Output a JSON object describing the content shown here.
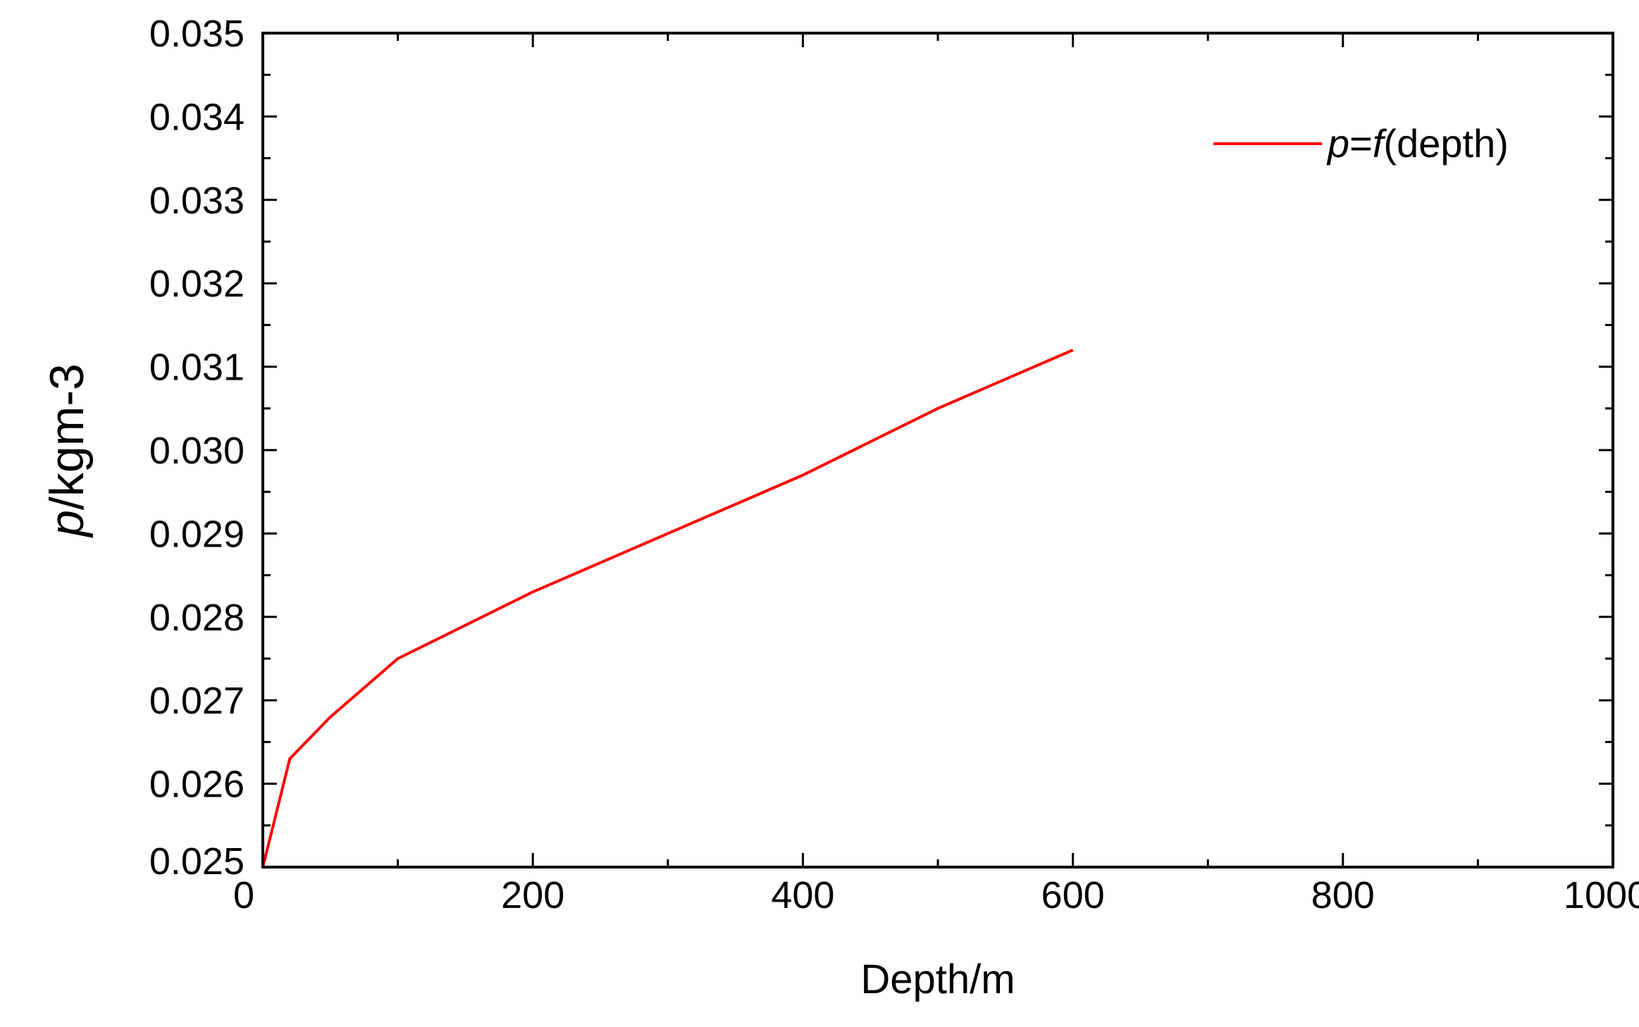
{
  "chart_data": {
    "type": "line",
    "xlabel": "Depth/m",
    "ylabel": {
      "italic": "p",
      "rest": "/kgm-3"
    },
    "xlim": [
      0,
      1000
    ],
    "ylim": [
      0.025,
      0.035
    ],
    "xticks": [
      0,
      200,
      400,
      600,
      800,
      1000
    ],
    "yticks": [
      "0.025",
      "0.026",
      "0.027",
      "0.028",
      "0.029",
      "0.030",
      "0.031",
      "0.032",
      "0.033",
      "0.034",
      "0.035"
    ],
    "grid": false,
    "legend_position": "top-right",
    "series": [
      {
        "name": "p=f(depth)",
        "name_parts": {
          "p": "p",
          "eq": "=",
          "f": "f",
          "arg": "(depth)"
        },
        "color": "#ff0000",
        "x": [
          0,
          20,
          50,
          100,
          200,
          300,
          400,
          500,
          600
        ],
        "y": [
          0.025,
          0.0263,
          0.0268,
          0.0275,
          0.0283,
          0.029,
          0.0297,
          0.0305,
          0.0312
        ]
      }
    ]
  }
}
